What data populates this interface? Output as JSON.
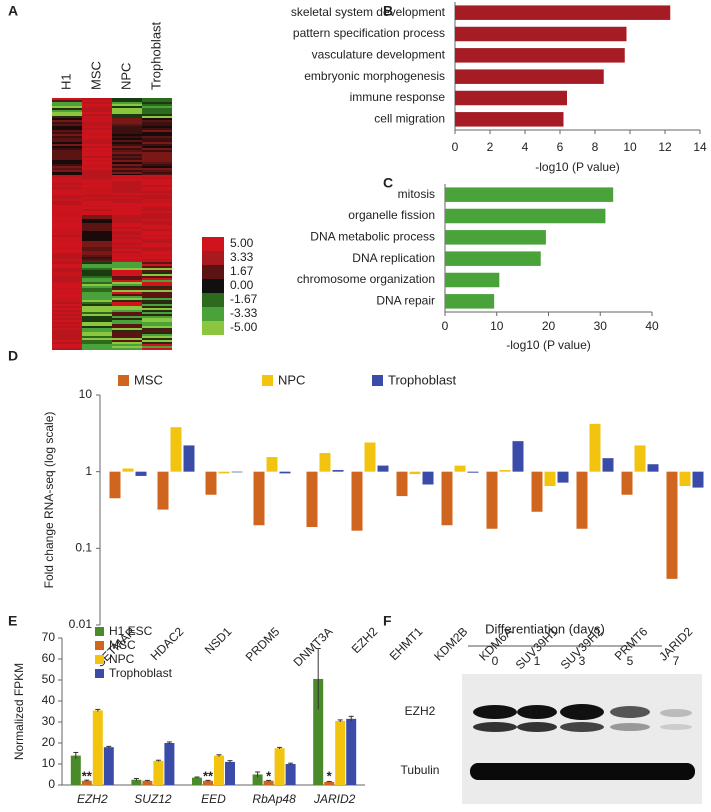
{
  "panels": [
    "A",
    "B",
    "C",
    "D",
    "E",
    "F"
  ],
  "chart_data": [
    {
      "type": "heatmap",
      "columns": [
        "H1",
        "MSC",
        "NPC",
        "Trophoblast"
      ],
      "colorbar_ticks": [
        {
          "value": 5,
          "label": "5.00"
        },
        {
          "value": 3.33,
          "label": "3.33"
        },
        {
          "value": 1.67,
          "label": "1.67"
        },
        {
          "value": 0,
          "label": "0.00"
        },
        {
          "value": -1.67,
          "label": "-1.67"
        },
        {
          "value": -3.33,
          "label": "-3.33"
        },
        {
          "value": -5,
          "label": "-5.00"
        }
      ],
      "colorbar_colors": [
        "#d0141e",
        "#a81a1e",
        "#5a1414",
        "#101010",
        "#2e6a1e",
        "#4aa23a",
        "#8cc63f"
      ]
    },
    {
      "type": "hbar",
      "x_label": "-log10 (P value)",
      "color": "#a51c24",
      "categories": [
        "skeletal system development",
        "pattern specification process",
        "vasculature development",
        "embryonic morphogenesis",
        "immune response",
        "cell migration"
      ],
      "values": [
        12.3,
        9.8,
        9.7,
        8.5,
        6.4,
        6.2
      ],
      "xlim": [
        0,
        14
      ],
      "xticks": [
        0,
        2,
        4,
        6,
        8,
        10,
        12,
        14
      ]
    },
    {
      "type": "hbar",
      "x_label": "-log10 (P value)",
      "color": "#4aa23a",
      "categories": [
        "mitosis",
        "organelle fission",
        "DNA metabolic process",
        "DNA replication",
        "chromosome organization",
        "DNA repair"
      ],
      "values": [
        32.5,
        31,
        19.5,
        18.5,
        10.5,
        9.5
      ],
      "xlim": [
        0,
        40
      ],
      "xticks": [
        0,
        10,
        20,
        30,
        40
      ]
    },
    {
      "type": "logbar",
      "y_label": "Fold change RNA-seq (log scale)",
      "log_scale": true,
      "categories": [
        "SETMAR",
        "HDAC2",
        "NSD1",
        "PRDM5",
        "DNMT3A",
        "EZH2",
        "EHMT1",
        "KDM2B",
        "KDM6A",
        "SUV39H1",
        "SUV39H2",
        "PRMT6",
        "JARID2"
      ],
      "series": [
        {
          "name": "MSC",
          "color": "#d0651f",
          "values": [
            0.45,
            0.32,
            0.5,
            0.2,
            0.19,
            0.17,
            0.48,
            0.2,
            0.18,
            0.3,
            0.18,
            0.5,
            0.04
          ]
        },
        {
          "name": "NPC",
          "color": "#f2c30f",
          "values": [
            1.1,
            3.8,
            0.95,
            1.55,
            1.75,
            2.4,
            0.93,
            1.2,
            1.05,
            0.65,
            4.2,
            2.2,
            0.65
          ]
        },
        {
          "name": "Trophoblast",
          "color": "#3b4ba8",
          "values": [
            0.88,
            2.2,
            0.98,
            0.95,
            1.05,
            1.2,
            0.68,
            0.97,
            2.5,
            0.72,
            1.5,
            1.25,
            0.62
          ]
        }
      ],
      "ylim": [
        0.01,
        10
      ],
      "yticks": [
        0.01,
        0.1,
        1,
        10
      ]
    },
    {
      "type": "groupbar",
      "y_label": "Normalized FPKM",
      "categories": [
        "EZH2",
        "SUZ12",
        "EED",
        "RbAp48",
        "JARID2"
      ],
      "series": [
        {
          "name": "H1 ESC",
          "color": "#4a8a2a",
          "values": [
            14,
            2.5,
            3.5,
            5,
            50.5
          ],
          "errors": [
            1.5,
            0.6,
            0.3,
            1.2,
            14.5
          ]
        },
        {
          "name": "MSC",
          "color": "#d0651f",
          "values": [
            2,
            2,
            2,
            2,
            1.5
          ],
          "errors": [
            0.3,
            0.2,
            0.2,
            0.2,
            0.2
          ]
        },
        {
          "name": "NPC",
          "color": "#f2c30f",
          "values": [
            35.5,
            11.5,
            14,
            17.5,
            30.5
          ],
          "errors": [
            0.5,
            0.3,
            0.4,
            0.4,
            0.5
          ]
        },
        {
          "name": "Trophoblast",
          "color": "#3b4ba8",
          "values": [
            18,
            20,
            11,
            10,
            31.5
          ],
          "errors": [
            0.4,
            0.5,
            0.6,
            0.4,
            1.2
          ]
        }
      ],
      "significance": [
        "**",
        null,
        "**",
        "*",
        "*"
      ],
      "ylim": [
        0,
        70
      ],
      "yticks": [
        0,
        10,
        20,
        30,
        40,
        50,
        60,
        70
      ]
    }
  ],
  "blot": {
    "title": "Differentiation (days)",
    "lanes": [
      "0",
      "1",
      "3",
      "5",
      "7"
    ],
    "rows": [
      "EZH2",
      "Tubulin"
    ]
  }
}
